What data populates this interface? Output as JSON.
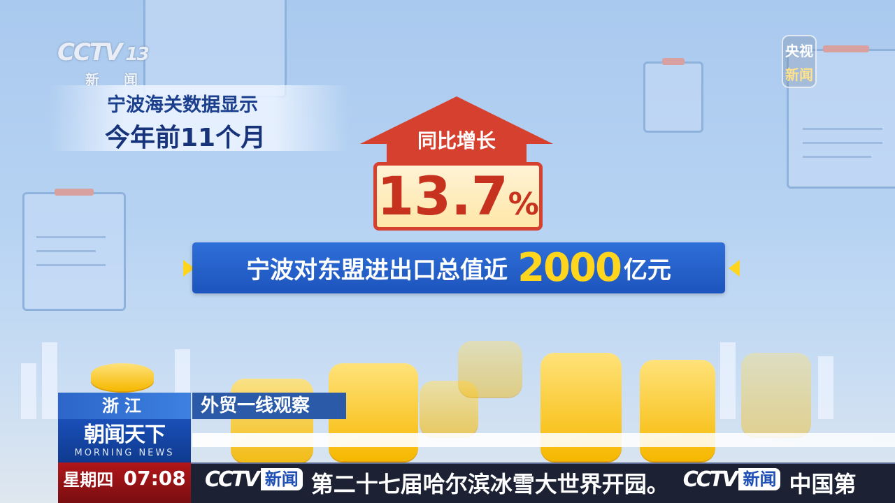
{
  "channel_logo": {
    "brand": "CCTV",
    "number": "13",
    "sub": "新 闻"
  },
  "corner_logo": {
    "line1": "央视",
    "line2": "新闻"
  },
  "headline": {
    "line1": "宁波海关数据显示",
    "line2": "今年前11个月"
  },
  "growth": {
    "label": "同比增长",
    "value": "13.7",
    "unit": "%"
  },
  "banner": {
    "prefix": "宁波对东盟进出口总值近",
    "number": "2000",
    "suffix": "亿元"
  },
  "lower_third": {
    "location": "浙江",
    "topic": "外贸一线观察",
    "show_name": "朝闻天下",
    "show_name_en": "MORNING NEWS",
    "weekday": "星期四",
    "time": "07:08"
  },
  "ticker": {
    "logo_brand": "CCTV",
    "logo_label": "新闻",
    "items": [
      "第二十七届哈尔滨冰雪大世界开园。",
      "中国第"
    ]
  },
  "colors": {
    "accent_red": "#d6402e",
    "banner_blue": "#1d54bd",
    "highlight_yellow": "#ffd51e"
  }
}
